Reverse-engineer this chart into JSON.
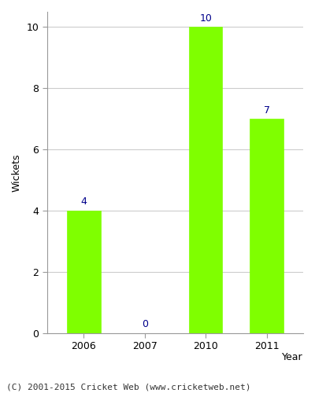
{
  "years": [
    "2006",
    "2007",
    "2010",
    "2011"
  ],
  "values": [
    4,
    0,
    10,
    7
  ],
  "bar_color": "#7fff00",
  "bar_edgecolor": "#7fff00",
  "annotation_color": "#00008b",
  "ylabel": "Wickets",
  "xlabel": "Year",
  "ylim": [
    0,
    10.5
  ],
  "yticks": [
    0,
    2,
    4,
    6,
    8,
    10
  ],
  "footer": "(C) 2001-2015 Cricket Web (www.cricketweb.net)",
  "annotation_fontsize": 9,
  "axis_label_fontsize": 9,
  "tick_fontsize": 9,
  "footer_fontsize": 8,
  "bar_width": 0.55
}
